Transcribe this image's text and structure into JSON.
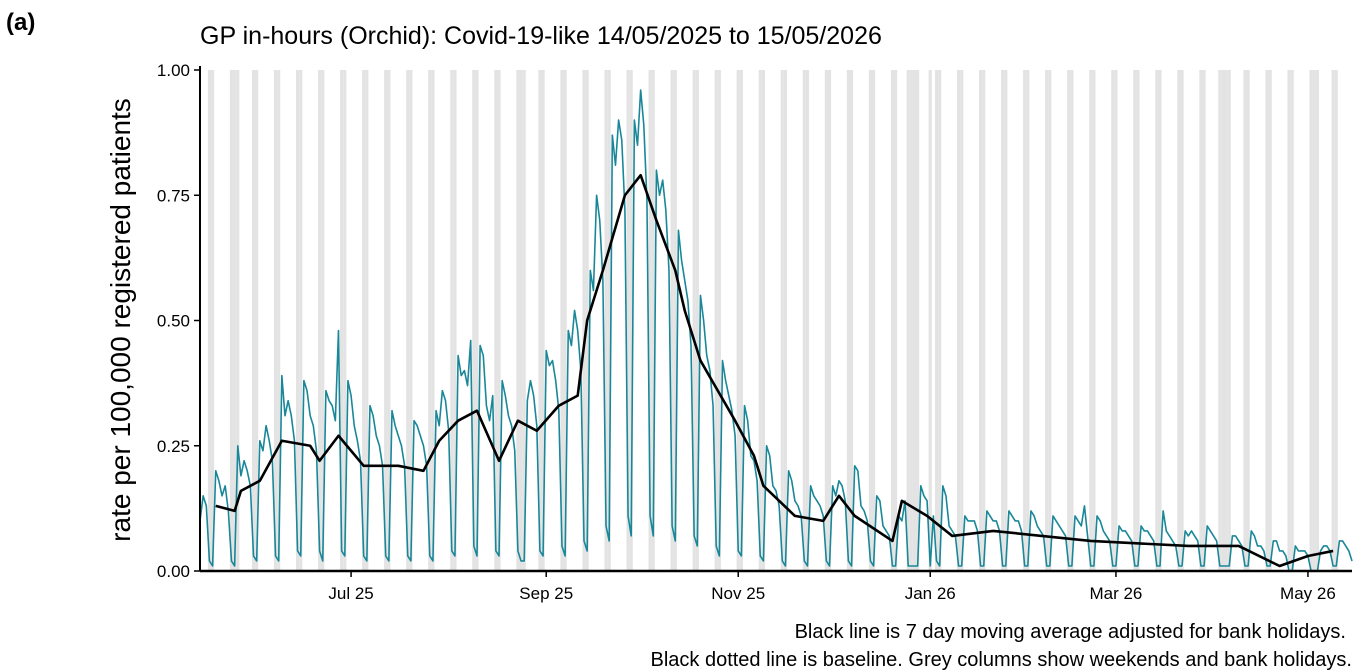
{
  "chart_data": {
    "type": "line",
    "panel_label": "(a)",
    "title": "GP in-hours (Orchid): Covid-19-like 14/05/2025 to 15/05/2026",
    "y_label": "rate per 100,000 registered patients",
    "notes": [
      "Black line is 7 day moving average adjusted for bank holidays.",
      "Black dotted line is baseline. Grey columns show weekends and bank holidays."
    ],
    "xlim": [
      0,
      366
    ],
    "ylim": [
      0,
      1
    ],
    "xticks": [
      {
        "value": 48,
        "label": "Jul 25"
      },
      {
        "value": 110,
        "label": "Sep 25"
      },
      {
        "value": 171,
        "label": "Nov 25"
      },
      {
        "value": 232,
        "label": "Jan 26"
      },
      {
        "value": 291,
        "label": "Mar 26"
      },
      {
        "value": 352,
        "label": "May 26"
      }
    ],
    "yticks": [
      {
        "value": 0,
        "label": "0.00"
      },
      {
        "value": 0.25,
        "label": "0.25"
      },
      {
        "value": 0.5,
        "label": "0.50"
      },
      {
        "value": 0.75,
        "label": "0.75"
      },
      {
        "value": 1,
        "label": "1.00"
      }
    ],
    "shade_color": "#e3e3e3",
    "shaded": [
      3,
      4,
      10,
      11,
      12,
      17,
      18,
      24,
      25,
      31,
      32,
      38,
      39,
      45,
      46,
      52,
      53,
      59,
      60,
      66,
      67,
      73,
      74,
      80,
      81,
      87,
      88,
      94,
      95,
      101,
      102,
      103,
      108,
      109,
      115,
      116,
      122,
      123,
      129,
      130,
      136,
      137,
      143,
      144,
      150,
      151,
      157,
      158,
      164,
      165,
      171,
      172,
      178,
      179,
      185,
      186,
      192,
      193,
      199,
      200,
      206,
      207,
      213,
      214,
      220,
      221,
      225,
      226,
      227,
      228,
      232,
      234,
      235,
      241,
      242,
      248,
      249,
      255,
      256,
      262,
      263,
      269,
      270,
      276,
      277,
      283,
      284,
      290,
      291,
      297,
      298,
      304,
      305,
      311,
      312,
      318,
      319,
      324,
      325,
      326,
      327,
      332,
      333,
      339,
      340,
      346,
      347,
      353,
      354,
      355,
      360,
      361
    ],
    "series": [
      {
        "color": "#1a8799",
        "width": 1.6,
        "x": [
          0,
          1,
          2,
          3,
          4,
          5,
          6,
          7,
          8,
          9,
          10,
          11,
          12,
          13,
          14,
          15,
          16,
          17,
          18,
          19,
          20,
          21,
          22,
          23,
          24,
          25,
          26,
          27,
          28,
          29,
          30,
          31,
          32,
          33,
          34,
          35,
          36,
          37,
          38,
          39,
          40,
          41,
          42,
          43,
          44,
          45,
          46,
          47,
          48,
          49,
          50,
          51,
          52,
          53,
          54,
          55,
          56,
          57,
          58,
          59,
          60,
          61,
          62,
          63,
          64,
          65,
          66,
          67,
          68,
          69,
          70,
          71,
          72,
          73,
          74,
          75,
          76,
          77,
          78,
          79,
          80,
          81,
          82,
          83,
          84,
          85,
          86,
          87,
          88,
          89,
          90,
          91,
          92,
          93,
          94,
          95,
          96,
          97,
          98,
          99,
          100,
          101,
          102,
          103,
          104,
          105,
          106,
          107,
          108,
          109,
          110,
          111,
          112,
          113,
          114,
          115,
          116,
          117,
          118,
          119,
          120,
          121,
          122,
          123,
          124,
          125,
          126,
          127,
          128,
          129,
          130,
          131,
          132,
          133,
          134,
          135,
          136,
          137,
          138,
          139,
          140,
          141,
          142,
          143,
          144,
          145,
          146,
          147,
          148,
          149,
          150,
          151,
          152,
          153,
          154,
          155,
          156,
          157,
          158,
          159,
          160,
          161,
          162,
          163,
          164,
          165,
          166,
          167,
          168,
          169,
          170,
          171,
          172,
          173,
          174,
          175,
          176,
          177,
          178,
          179,
          180,
          181,
          182,
          183,
          184,
          185,
          186,
          187,
          188,
          189,
          190,
          191,
          192,
          193,
          194,
          195,
          196,
          197,
          198,
          199,
          200,
          201,
          202,
          203,
          204,
          205,
          206,
          207,
          208,
          209,
          210,
          211,
          212,
          213,
          214,
          215,
          216,
          217,
          218,
          219,
          220,
          221,
          222,
          223,
          224,
          225,
          226,
          227,
          228,
          229,
          230,
          231,
          232,
          233,
          234,
          235,
          236,
          237,
          238,
          239,
          240,
          241,
          242,
          243,
          244,
          245,
          246,
          247,
          248,
          249,
          250,
          251,
          252,
          253,
          254,
          255,
          256,
          257,
          258,
          259,
          260,
          261,
          262,
          263,
          264,
          265,
          266,
          267,
          268,
          269,
          270,
          271,
          272,
          273,
          274,
          275,
          276,
          277,
          278,
          279,
          280,
          281,
          282,
          283,
          284,
          285,
          286,
          287,
          288,
          289,
          290,
          291,
          292,
          293,
          294,
          295,
          296,
          297,
          298,
          299,
          300,
          301,
          302,
          303,
          304,
          305,
          306,
          307,
          308,
          309,
          310,
          311,
          312,
          313,
          314,
          315,
          316,
          317,
          318,
          319,
          320,
          321,
          322,
          323,
          324,
          325,
          326,
          327,
          328,
          329,
          330,
          331,
          332,
          333,
          334,
          335,
          336,
          337,
          338,
          339,
          340,
          341,
          342,
          343,
          344,
          345,
          346,
          347,
          348,
          349,
          350,
          351,
          352,
          353,
          354,
          355,
          356,
          357,
          358,
          359,
          360,
          361,
          362,
          363,
          364,
          365,
          366
        ],
        "values": [
          0.1,
          0.15,
          0.13,
          0.02,
          0.01,
          0.2,
          0.18,
          0.15,
          0.17,
          0.12,
          0.02,
          0.01,
          0.25,
          0.19,
          0.22,
          0.2,
          0.17,
          0.03,
          0.02,
          0.26,
          0.24,
          0.29,
          0.26,
          0.22,
          0.03,
          0.02,
          0.39,
          0.31,
          0.34,
          0.31,
          0.26,
          0.04,
          0.03,
          0.38,
          0.36,
          0.31,
          0.29,
          0.24,
          0.04,
          0.02,
          0.36,
          0.34,
          0.33,
          0.3,
          0.48,
          0.04,
          0.03,
          0.38,
          0.35,
          0.29,
          0.26,
          0.22,
          0.03,
          0.02,
          0.33,
          0.31,
          0.27,
          0.25,
          0.21,
          0.03,
          0.02,
          0.32,
          0.29,
          0.27,
          0.25,
          0.21,
          0.03,
          0.02,
          0.3,
          0.29,
          0.27,
          0.25,
          0.21,
          0.03,
          0.02,
          0.32,
          0.29,
          0.36,
          0.34,
          0.28,
          0.04,
          0.03,
          0.43,
          0.39,
          0.4,
          0.37,
          0.46,
          0.05,
          0.03,
          0.45,
          0.43,
          0.33,
          0.3,
          0.35,
          0.04,
          0.03,
          0.38,
          0.35,
          0.31,
          0.29,
          0.24,
          0.04,
          0.02,
          0.02,
          0.34,
          0.38,
          0.35,
          0.29,
          0.04,
          0.03,
          0.44,
          0.41,
          0.42,
          0.38,
          0.32,
          0.05,
          0.03,
          0.48,
          0.45,
          0.52,
          0.48,
          0.4,
          0.06,
          0.04,
          0.6,
          0.56,
          0.75,
          0.7,
          0.58,
          0.09,
          0.06,
          0.87,
          0.81,
          0.9,
          0.86,
          0.72,
          0.11,
          0.07,
          0.9,
          0.85,
          0.96,
          0.89,
          0.74,
          0.11,
          0.07,
          0.8,
          0.75,
          0.78,
          0.72,
          0.6,
          0.09,
          0.06,
          0.68,
          0.62,
          0.58,
          0.54,
          0.45,
          0.07,
          0.05,
          0.55,
          0.5,
          0.43,
          0.4,
          0.33,
          0.05,
          0.03,
          0.42,
          0.38,
          0.35,
          0.32,
          0.27,
          0.04,
          0.03,
          0.33,
          0.3,
          0.23,
          0.22,
          0.18,
          0.03,
          0.02,
          0.25,
          0.23,
          0.17,
          0.16,
          0.13,
          0.02,
          0.01,
          0.2,
          0.18,
          0.14,
          0.13,
          0.11,
          0.02,
          0.01,
          0.17,
          0.15,
          0.14,
          0.13,
          0.11,
          0.02,
          0.01,
          0.17,
          0.15,
          0.18,
          0.17,
          0.14,
          0.02,
          0.01,
          0.21,
          0.2,
          0.13,
          0.12,
          0.1,
          0.02,
          0.01,
          0.15,
          0.14,
          0.09,
          0.08,
          0.07,
          0.01,
          0.01,
          0.11,
          0.1,
          0.14,
          0.01,
          0.01,
          0.01,
          0.01,
          0.17,
          0.15,
          0.14,
          0.01,
          0.11,
          0.02,
          0.01,
          0.17,
          0.15,
          0.09,
          0.08,
          0.07,
          0.01,
          0.01,
          0.11,
          0.1,
          0.1,
          0.1,
          0.08,
          0.01,
          0.01,
          0.12,
          0.11,
          0.1,
          0.1,
          0.08,
          0.01,
          0.01,
          0.12,
          0.11,
          0.1,
          0.1,
          0.08,
          0.01,
          0.01,
          0.12,
          0.11,
          0.09,
          0.08,
          0.07,
          0.01,
          0.01,
          0.11,
          0.1,
          0.09,
          0.08,
          0.07,
          0.01,
          0.01,
          0.11,
          0.1,
          0.09,
          0.13,
          0.07,
          0.01,
          0.01,
          0.11,
          0.1,
          0.08,
          0.07,
          0.06,
          0.01,
          0.01,
          0.09,
          0.08,
          0.08,
          0.07,
          0.06,
          0.01,
          0.01,
          0.09,
          0.08,
          0.08,
          0.07,
          0.06,
          0.01,
          0.01,
          0.12,
          0.08,
          0.07,
          0.06,
          0.05,
          0.01,
          0.01,
          0.08,
          0.07,
          0.08,
          0.07,
          0.06,
          0.01,
          0.01,
          0.09,
          0.08,
          0.07,
          0.06,
          0.01,
          0.01,
          0.01,
          0.01,
          0.07,
          0.07,
          0.06,
          0.05,
          0.01,
          0.01,
          0.08,
          0.07,
          0.05,
          0.05,
          0.04,
          0.01,
          0.01,
          0.06,
          0.06,
          0.04,
          0.04,
          0.03,
          0,
          0,
          0.05,
          0.04,
          0.04,
          0.04,
          0.03,
          0,
          0,
          0,
          0.04,
          0.05,
          0.05,
          0.04,
          0.01,
          0.01,
          0.06,
          0.06,
          0.05,
          0.04,
          0.02
        ]
      },
      {
        "color": "#000000",
        "width": 2.6,
        "x": [
          5,
          11,
          13,
          19,
          26,
          35,
          38,
          44,
          48,
          52,
          63,
          71,
          76,
          82,
          88,
          95,
          101,
          107,
          114,
          120,
          123,
          128,
          135,
          140,
          145,
          151,
          154,
          159,
          170,
          176,
          179,
          189,
          198,
          203,
          208,
          220,
          223,
          231,
          239,
          252,
          283,
          314,
          330,
          343,
          352,
          360
        ],
        "values": [
          0.13,
          0.12,
          0.16,
          0.18,
          0.26,
          0.25,
          0.22,
          0.27,
          0.24,
          0.21,
          0.21,
          0.2,
          0.26,
          0.3,
          0.32,
          0.22,
          0.3,
          0.28,
          0.33,
          0.35,
          0.5,
          0.6,
          0.75,
          0.79,
          0.7,
          0.6,
          0.52,
          0.42,
          0.3,
          0.23,
          0.17,
          0.11,
          0.1,
          0.15,
          0.11,
          0.06,
          0.14,
          0.11,
          0.07,
          0.08,
          0.06,
          0.05,
          0.05,
          0.01,
          0.03,
          0.04
        ]
      }
    ]
  }
}
